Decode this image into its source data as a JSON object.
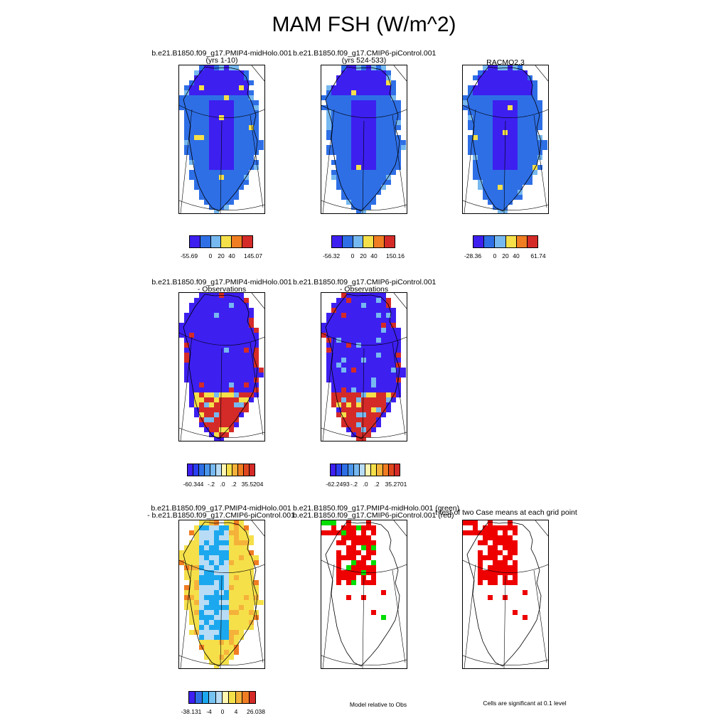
{
  "title": "MAM FSH (W/m^2)",
  "row1": {
    "p1": {
      "title_line1": "b.e21.B1850.f09_g17.PMIP4-midHolo.001",
      "title_line2": "(yrs 1-10)"
    },
    "p2": {
      "title_line1": "b.e21.B1850.f09_g17.CMIP6-piControl.001",
      "title_line2": "(yrs 524-533)"
    },
    "p3": {
      "title_line1": "RACMO2.3"
    }
  },
  "row2": {
    "p1": {
      "title_line1": "b.e21.B1850.f09_g17.PMIP4-midHolo.001",
      "title_line2": "- Observations"
    },
    "p2": {
      "title_line1": "b.e21.B1850.f09_g17.CMIP6-piControl.001",
      "title_line2": "- Observations"
    }
  },
  "row3": {
    "p1": {
      "title_line1": "b.e21.B1850.f09_g17.PMIP4-midHolo.001",
      "title_line2": "- b.e21.B1850.f09_g17.CMIP6-piControl.001"
    },
    "p2": {
      "title_line1": "b.e21.B1850.f09_g17.PMIP4-midHolo.001 (green)",
      "title_line2": "b.e21.B1850.f09_g17.CMIP6-piControl.001 (red)"
    },
    "p3": {
      "title_line1": "t-test of two Case means at each grid point"
    }
  },
  "notes": {
    "model_relative": "Model relative to Obs",
    "significance": "Cells are significant at 0.1 level"
  },
  "chart_data": [
    {
      "type": "heatmap",
      "title": "b.e21.B1850.f09_g17.PMIP4-midHolo.001 (yrs 1-10)",
      "colorbar_labels": [
        "-55.69",
        "0",
        "20",
        "40",
        "145.07"
      ],
      "colors": [
        "#3d1ff0",
        "#2e6fe6",
        "#76b8f0",
        "#f5e04a",
        "#f07d22",
        "#d42b28"
      ]
    },
    {
      "type": "heatmap",
      "title": "b.e21.B1850.f09_g17.CMIP6-piControl.001 (yrs 524-533)",
      "colorbar_labels": [
        "-56.32",
        "0",
        "20",
        "40",
        "150.16"
      ],
      "colors": [
        "#3d1ff0",
        "#2e6fe6",
        "#76b8f0",
        "#f5e04a",
        "#f07d22",
        "#d42b28"
      ]
    },
    {
      "type": "heatmap",
      "title": "RACMO2.3",
      "colorbar_labels": [
        "-28.36",
        "0",
        "20",
        "40",
        "61.74"
      ],
      "colors": [
        "#3d1ff0",
        "#2e6fe6",
        "#76b8f0",
        "#f5e04a",
        "#f07d22",
        "#d42b28"
      ]
    },
    {
      "type": "heatmap",
      "title": "b.e21.B1850.f09_g17.PMIP4-midHolo.001 - Observations",
      "colorbar_labels": [
        "-60.344",
        "-.2",
        ".0",
        ".2",
        "35.5204"
      ],
      "colors": [
        "#3d1ff0",
        "#2b3ff0",
        "#2e6fe6",
        "#4a96ea",
        "#76b8f0",
        "#b8dcf5",
        "#fff6b0",
        "#f5e04a",
        "#f5b23a",
        "#f07d22",
        "#e0471f",
        "#d42b28"
      ]
    },
    {
      "type": "heatmap",
      "title": "b.e21.B1850.f09_g17.CMIP6-piControl.001 - Observations",
      "colorbar_labels": [
        "-62.2493",
        "-.2",
        ".0",
        ".2",
        "35.2701"
      ],
      "colors": [
        "#3d1ff0",
        "#2b3ff0",
        "#2e6fe6",
        "#4a96ea",
        "#76b8f0",
        "#b8dcf5",
        "#fff6b0",
        "#f5e04a",
        "#f5b23a",
        "#f07d22",
        "#e0471f",
        "#d42b28"
      ]
    },
    {
      "type": "heatmap",
      "title": "b.e21.B1850.f09_g17.PMIP4-midHolo.001 - b.e21.B1850.f09_g17.CMIP6-piControl.001",
      "colorbar_labels": [
        "-38.131",
        "-4",
        "0",
        "4",
        "26.038"
      ],
      "colors": [
        "#3d1ff0",
        "#2e6fe6",
        "#1ca8ee",
        "#76c2f0",
        "#b8dcf5",
        "#fff6b0",
        "#f5e04a",
        "#f5b23a",
        "#f07d22",
        "#d42b28"
      ]
    },
    {
      "type": "heatmap",
      "title": "b.e21.B1850.f09_g17.PMIP4-midHolo.001 (green) b.e21.B1850.f09_g17.CMIP6-piControl.001 (red)",
      "colors": [
        "#00dd00",
        "#ee0000"
      ]
    },
    {
      "type": "heatmap",
      "title": "t-test of two Case means at each grid point",
      "colors": [
        "#ee0000"
      ]
    }
  ]
}
